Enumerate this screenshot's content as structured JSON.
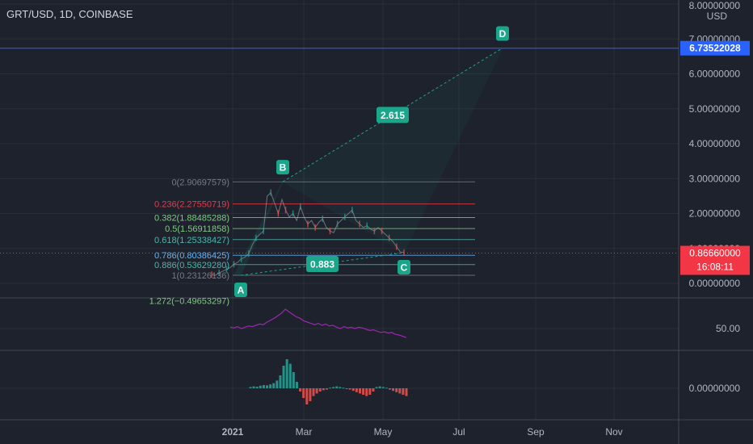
{
  "symbol_title": "GRT/USD, 1D, COINBASE",
  "colors": {
    "background": "#1e222d",
    "grid": "#2a2e39",
    "axis_text": "#b2b5be",
    "harmonic": "#1aa68a",
    "fib_line": "#787b86",
    "fib_red": "#f23645",
    "fib_green": "#81c784",
    "fib_teal": "#4db6ac",
    "fib_blue": "#64b5f6",
    "price_line_blue": "#2962ff",
    "last_price_red": "#f23645",
    "rsi": "#9c27b0",
    "hist_up": "#26a69a",
    "hist_down": "#ef5350"
  },
  "chart_data": {
    "type": "line",
    "price_axis": {
      "unit": "USD",
      "ticks": [
        "8.00000000",
        "7.00000000",
        "6.00000000",
        "5.00000000",
        "4.00000000",
        "3.00000000",
        "2.00000000",
        "1.00000000",
        "0.00000000"
      ],
      "tick_values": [
        8,
        7,
        6,
        5,
        4,
        3,
        2,
        1,
        0
      ],
      "ylim": [
        -0.3,
        8.2
      ]
    },
    "time_axis": {
      "labels": [
        "2021",
        "Mar",
        "May",
        "Jul",
        "Sep",
        "Nov"
      ]
    },
    "price_labels": {
      "target": "6.73522028",
      "last_price": "0.86660000",
      "countdown": "16:08:11"
    },
    "harmonic_points": [
      {
        "label": "A",
        "value": 0.23
      },
      {
        "label": "B",
        "value": 2.91
      },
      {
        "label": "C",
        "value": 0.88
      },
      {
        "label": "D",
        "value": 6.74
      }
    ],
    "ratio_labels": [
      "2.615",
      "0.883"
    ],
    "fib_levels": [
      {
        "text": "0(2.90697579)",
        "value": 2.90697579,
        "color": "#787b86"
      },
      {
        "text": "0.236(2.27550719)",
        "value": 2.27550719,
        "color": "#f23645"
      },
      {
        "text": "0.382(1.88485288)",
        "value": 1.88485288,
        "color": "#81c784"
      },
      {
        "text": "0.5(1.56911858)",
        "value": 1.56911858,
        "color": "#81c784"
      },
      {
        "text": "0.618(1.25338427)",
        "value": 1.25338427,
        "color": "#4db6ac"
      },
      {
        "text": "0.786(0.80386425)",
        "value": 0.80386425,
        "color": "#64b5f6"
      },
      {
        "text": "0.886(0.53629280)",
        "value": 0.5362928,
        "color": "#4db6ac"
      },
      {
        "text": "1(0.23126136)",
        "value": 0.23126136,
        "color": "#787b86"
      },
      {
        "text": "1.272(−0.49653297)",
        "value": -0.49653297,
        "color": "#81c784"
      }
    ],
    "price_series": [
      0.25,
      0.23,
      0.3,
      0.35,
      0.4,
      0.45,
      0.55,
      0.6,
      0.7,
      0.75,
      0.85,
      1.1,
      1.3,
      1.4,
      1.5,
      2.5,
      2.6,
      2.3,
      2.0,
      2.4,
      2.1,
      1.9,
      2.0,
      1.8,
      2.2,
      1.9,
      1.7,
      1.8,
      1.6,
      1.75,
      1.85,
      1.6,
      1.5,
      1.45,
      1.7,
      1.8,
      1.9,
      2.0,
      2.1,
      1.8,
      1.7,
      1.6,
      1.65,
      1.55,
      1.5,
      1.6,
      1.5,
      1.4,
      1.3,
      1.2,
      1.05,
      0.9,
      0.88
    ],
    "rsi": {
      "tick_label": "50.00",
      "values": [
        52,
        51,
        53,
        50,
        52,
        54,
        53,
        55,
        57,
        56,
        60,
        63,
        66,
        70,
        74,
        80,
        76,
        72,
        68,
        66,
        62,
        60,
        58,
        56,
        58,
        55,
        57,
        54,
        55,
        52,
        50,
        53,
        51,
        52,
        50,
        52,
        51,
        49,
        47,
        48,
        46,
        44,
        45,
        43,
        44,
        41,
        40,
        38,
        36
      ]
    },
    "macd": {
      "tick_label": "0.00000000",
      "values": [
        0.02,
        0.03,
        0.025,
        0.04,
        0.05,
        0.045,
        0.06,
        0.08,
        0.12,
        0.2,
        0.35,
        0.45,
        0.38,
        0.25,
        0.1,
        -0.05,
        -0.15,
        -0.25,
        -0.2,
        -0.12,
        -0.08,
        -0.05,
        -0.03,
        -0.02,
        0.01,
        0.02,
        0.03,
        0.02,
        0.01,
        0.0,
        -0.02,
        -0.04,
        -0.06,
        -0.08,
        -0.1,
        -0.12,
        -0.1,
        -0.05,
        0.02,
        0.03,
        0.02,
        0.01,
        -0.02,
        -0.04,
        -0.06,
        -0.08,
        -0.1,
        -0.12
      ]
    }
  }
}
